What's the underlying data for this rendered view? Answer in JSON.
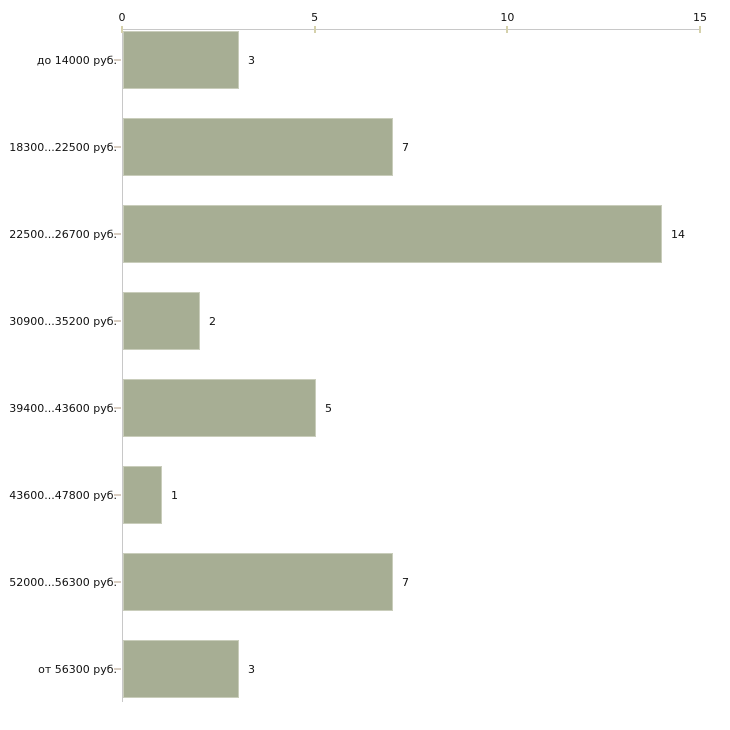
{
  "chart_data": {
    "type": "bar",
    "orientation": "horizontal",
    "categories": [
      "до 14000 руб.",
      "18300...22500 руб.",
      "22500...26700 руб.",
      "30900...35200 руб.",
      "39400...43600 руб.",
      "43600...47800 руб.",
      "52000...56300 руб.",
      "от 56300 руб."
    ],
    "values": [
      3,
      7,
      14,
      2,
      5,
      1,
      7,
      3
    ],
    "x_axis": {
      "position": "top",
      "min": 0,
      "max": 15,
      "ticks": [
        0,
        5,
        10,
        15
      ]
    },
    "ylabel": "",
    "xlabel": "",
    "title": "",
    "grid": false,
    "legend": false,
    "colors": {
      "bar_fill": "#a7ae94",
      "bar_border": "#c9cdbb",
      "axis_line": "#c8c8c8",
      "axis_tick": "#d5d1ab",
      "category_tick": "#d9cec2",
      "text": "#111111",
      "background": "#ffffff"
    }
  }
}
